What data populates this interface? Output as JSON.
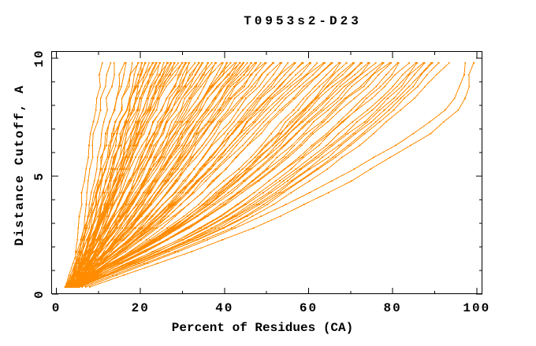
{
  "figure": {
    "background": "#ffffff",
    "axis_color": "#000000",
    "text_color": "#000000"
  },
  "chart_data": {
    "type": "line",
    "title": "T0953s2-D23",
    "xlabel": "Percent of Residues (CA)",
    "ylabel": "Distance Cutoff, A",
    "xlim": [
      0,
      100
    ],
    "ylim": [
      0,
      10
    ],
    "grid": false,
    "legend": null,
    "x_major_ticks": [
      0,
      20,
      40,
      60,
      80,
      100
    ],
    "x_minor_ticks": [
      10,
      30,
      50,
      70,
      90
    ],
    "y_major_ticks": [
      0,
      5,
      10
    ],
    "y_minor_ticks": [
      1,
      2,
      3,
      4,
      6,
      7,
      8,
      9
    ],
    "curve_color": "#ff8c00",
    "marker": "dot",
    "cutoff_anchors": [
      0.3,
      2.8,
      5.3,
      7.8,
      9.8
    ],
    "curves": [
      [
        4,
        6,
        8,
        9.5,
        11
      ],
      [
        4.5,
        7,
        9,
        10.5,
        12.5
      ],
      [
        5,
        7.5,
        10,
        12,
        14
      ],
      [
        5,
        8.5,
        11,
        13.5,
        16
      ],
      [
        3,
        7,
        10.5,
        13.5,
        17
      ],
      [
        4.5,
        8.5,
        11.5,
        15,
        18
      ],
      [
        2.5,
        7,
        11,
        15,
        19
      ],
      [
        4.2,
        8.5,
        12,
        16,
        19.5
      ],
      [
        5.5,
        9.5,
        13,
        16.5,
        20
      ],
      [
        3.5,
        8.5,
        12.5,
        16.5,
        20.5
      ],
      [
        4,
        9,
        13,
        17,
        21
      ],
      [
        3.2,
        8.5,
        12.5,
        17,
        21.5
      ],
      [
        2,
        7.5,
        12.5,
        17,
        22
      ],
      [
        5,
        10,
        14,
        18.5,
        22.5
      ],
      [
        3,
        8.5,
        13.5,
        18,
        23
      ],
      [
        5.3,
        10.5,
        15,
        19,
        23.5
      ],
      [
        4.8,
        10,
        15,
        19.5,
        24
      ],
      [
        2.2,
        8.5,
        14,
        19,
        24.5
      ],
      [
        5.2,
        10.5,
        15.5,
        20,
        25
      ],
      [
        2.8,
        9,
        14.5,
        20,
        25.5
      ],
      [
        3,
        9.5,
        15,
        20.5,
        26
      ],
      [
        4.5,
        10.5,
        16,
        21,
        26.5
      ],
      [
        2.5,
        9.5,
        15,
        21,
        27
      ],
      [
        4.2,
        10.5,
        16.5,
        22,
        27.5
      ],
      [
        5.5,
        12,
        17,
        22.5,
        28
      ],
      [
        3.5,
        10.5,
        16.5,
        22.5,
        28.5
      ],
      [
        4,
        11,
        17,
        23,
        29
      ],
      [
        3.2,
        10.5,
        17,
        23,
        29.5
      ],
      [
        2,
        10,
        16.5,
        23.5,
        30
      ],
      [
        5,
        12,
        18.5,
        24.5,
        30.5
      ],
      [
        3,
        11,
        17.5,
        24.5,
        31
      ],
      [
        5.3,
        13,
        19.5,
        25.5,
        31.5
      ],
      [
        4.8,
        12.5,
        19,
        25.5,
        32
      ],
      [
        2.2,
        11,
        18,
        25.5,
        33
      ],
      [
        5.2,
        13,
        20,
        26.5,
        33.5
      ],
      [
        3,
        12.5,
        20,
        27,
        34
      ],
      [
        2.8,
        12.5,
        20,
        27.5,
        34.5
      ],
      [
        4.5,
        13.5,
        21.5,
        28.5,
        35
      ],
      [
        2.5,
        12.5,
        21,
        28.5,
        36
      ],
      [
        5.5,
        15,
        22.5,
        29.5,
        36.5
      ],
      [
        3.5,
        13.5,
        22,
        29.5,
        37
      ],
      [
        4.2,
        14,
        22.5,
        30,
        37.5
      ],
      [
        4,
        14,
        22.5,
        30.5,
        38
      ],
      [
        2,
        13,
        22.5,
        31,
        39
      ],
      [
        5,
        15.5,
        24.5,
        32.5,
        40
      ],
      [
        3,
        14.5,
        23.5,
        32.5,
        40.5
      ],
      [
        4.8,
        15.5,
        24.5,
        33,
        41
      ],
      [
        3.2,
        14.5,
        24.5,
        33,
        41.5
      ],
      [
        2.2,
        14,
        24,
        33,
        42
      ],
      [
        5.2,
        16.5,
        26,
        34.5,
        43
      ],
      [
        3,
        15,
        25.5,
        34.5,
        43.5
      ],
      [
        4.5,
        16.5,
        26,
        35.5,
        44
      ],
      [
        5.3,
        17,
        27,
        36,
        44.5
      ],
      [
        2.5,
        15.5,
        26,
        35.5,
        45
      ],
      [
        5.5,
        17.5,
        27.5,
        36.5,
        45.5
      ],
      [
        3.5,
        16.5,
        27,
        36.5,
        46
      ],
      [
        4,
        17,
        27.5,
        37,
        46.5
      ],
      [
        2.5,
        17,
        28.5,
        38,
        47
      ],
      [
        4,
        18.5,
        29.5,
        39,
        48
      ],
      [
        2.8,
        18,
        29.5,
        39.5,
        48.5
      ],
      [
        3,
        18,
        29.5,
        40,
        49
      ],
      [
        5,
        20,
        31,
        41,
        50
      ],
      [
        3.5,
        19,
        31,
        41.5,
        51
      ],
      [
        2.5,
        19,
        31,
        42,
        52
      ],
      [
        4,
        20,
        32.5,
        43,
        53
      ],
      [
        3,
        20,
        32.5,
        44,
        54
      ],
      [
        5,
        21.5,
        34,
        45,
        55
      ],
      [
        3.5,
        21,
        34,
        45.5,
        56
      ],
      [
        2.5,
        20.5,
        34,
        46,
        57
      ],
      [
        4,
        22,
        35.5,
        47,
        58
      ],
      [
        3,
        21.5,
        35.5,
        48,
        59
      ],
      [
        5,
        23,
        37,
        49,
        60
      ],
      [
        3.5,
        22.5,
        37,
        49.5,
        61
      ],
      [
        2.5,
        22,
        37,
        50,
        62
      ],
      [
        4,
        23.5,
        38,
        51,
        63
      ],
      [
        3,
        23,
        38.5,
        52,
        64
      ],
      [
        5,
        25,
        40,
        53,
        65
      ],
      [
        3.5,
        24,
        40,
        53.5,
        66
      ],
      [
        3,
        26,
        42.5,
        56,
        67
      ],
      [
        3.8,
        27,
        43.5,
        57,
        68
      ],
      [
        4.5,
        27.5,
        44.5,
        58,
        69
      ],
      [
        3.5,
        27.5,
        44.5,
        58.5,
        70
      ],
      [
        4.2,
        28,
        45.5,
        59.5,
        71
      ],
      [
        3,
        28,
        46,
        60.5,
        72
      ],
      [
        4.5,
        29,
        47,
        61.5,
        73
      ],
      [
        3.2,
        28.5,
        47,
        62,
        74
      ],
      [
        3.5,
        29,
        48,
        63,
        75
      ],
      [
        3,
        29.5,
        48.5,
        63.5,
        76
      ],
      [
        4.8,
        31,
        49.5,
        64.5,
        77
      ],
      [
        4.5,
        31,
        50,
        65.5,
        78
      ],
      [
        3.6,
        30.5,
        50.5,
        66,
        79
      ],
      [
        3.5,
        31,
        51,
        67,
        80
      ],
      [
        4.4,
        33.5,
        53.5,
        69.5,
        81
      ],
      [
        5.2,
        34.5,
        54.5,
        70.5,
        82
      ],
      [
        4.6,
        35,
        55.5,
        72,
        84
      ],
      [
        4,
        36.5,
        57.5,
        74.5,
        85
      ],
      [
        5.4,
        37.5,
        58.5,
        75.5,
        86
      ],
      [
        4.8,
        37.5,
        59,
        76.5,
        87
      ],
      [
        5,
        38,
        60,
        77,
        88
      ],
      [
        4.5,
        38.5,
        60.5,
        78,
        89
      ],
      [
        5.5,
        39.5,
        61.5,
        79,
        90
      ],
      [
        5,
        39.5,
        62,
        80,
        91
      ],
      [
        6,
        41,
        63.5,
        81.5,
        93
      ],
      [
        7,
        42,
        70,
        92,
        97.5
      ],
      [
        8,
        46,
        74,
        95,
        99
      ]
    ]
  }
}
